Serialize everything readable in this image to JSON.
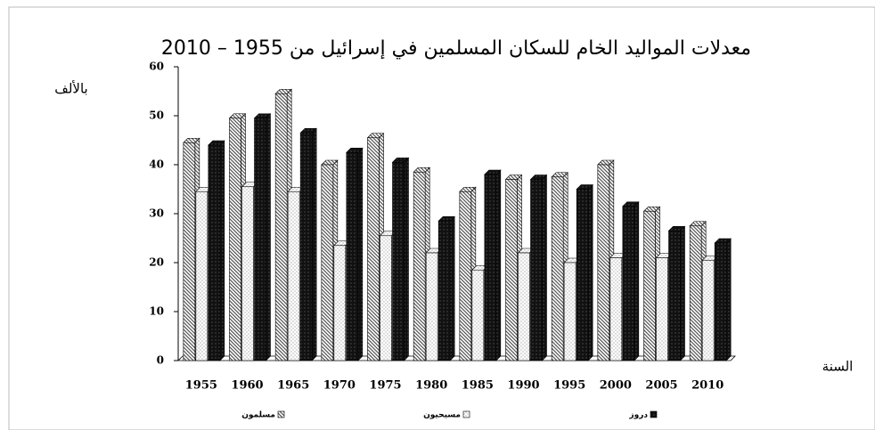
{
  "chart_data": {
    "type": "bar",
    "title": "معدلات المواليد الخام للسكان المسلمين في إسرائيل من 1955 – 2010",
    "y_label": "بالألف",
    "x_label": "السنة",
    "categories": [
      "1955",
      "1960",
      "1965",
      "1970",
      "1975",
      "1980",
      "1985",
      "1990",
      "1995",
      "2000",
      "2005",
      "2010"
    ],
    "series": [
      {
        "name": "مسلمون",
        "color": "#555555",
        "values": [
          44.5,
          49.5,
          54.5,
          40,
          45.5,
          38.5,
          34.5,
          37,
          37.5,
          40,
          30.5,
          27.5
        ]
      },
      {
        "name": "مسيحيون",
        "color": "#888888",
        "values": [
          34.5,
          35.5,
          34.5,
          23.5,
          25.5,
          22,
          18.5,
          22,
          20,
          21,
          21,
          20.5
        ]
      },
      {
        "name": "دروز",
        "color": "#111111",
        "values": [
          44,
          49.5,
          46.5,
          42.5,
          40.5,
          28.5,
          38,
          37,
          35,
          31.5,
          26.5,
          24
        ]
      }
    ],
    "ylim": [
      0,
      60
    ],
    "yticks": [
      0,
      10,
      20,
      30,
      40,
      50,
      60
    ]
  }
}
